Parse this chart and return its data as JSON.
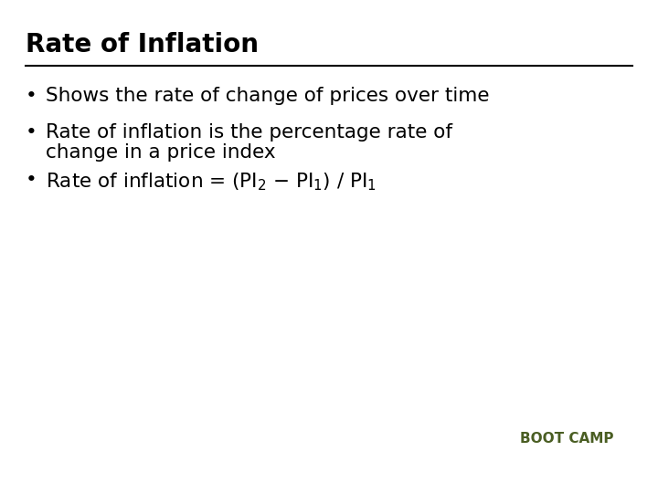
{
  "title": "Rate of Inflation",
  "background_color": "#ffffff",
  "title_color": "#000000",
  "title_fontsize": 20,
  "title_bold": true,
  "line_color": "#000000",
  "bullet_fontsize": 15.5,
  "bullet_color": "#000000",
  "bullet_symbol": "•",
  "footer_color": "#4a5e23",
  "footer_fontsize": 11,
  "footer_text": "BOOT CAMP"
}
